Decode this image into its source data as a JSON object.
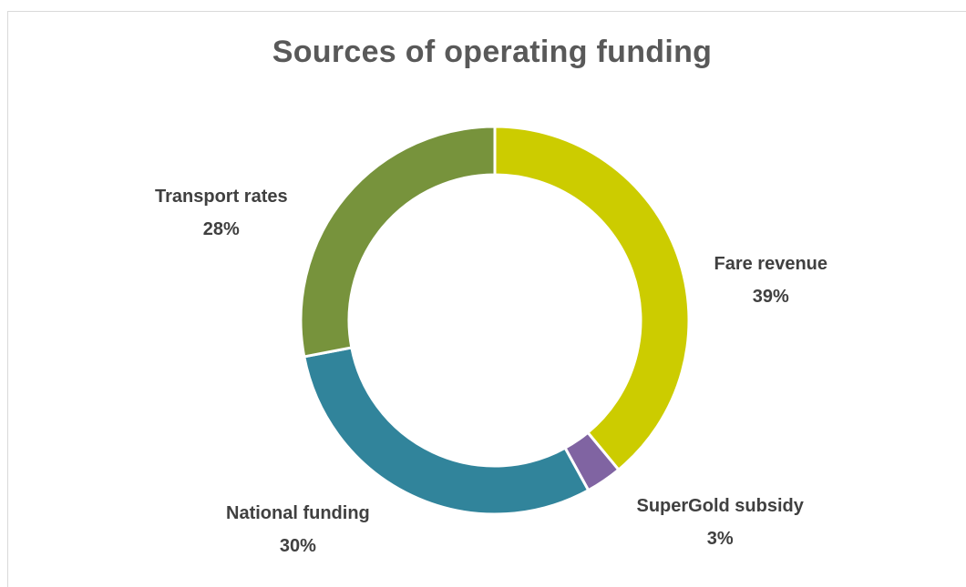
{
  "chart_data": {
    "type": "pie",
    "variant": "donut",
    "title": "Sources of operating funding",
    "slices": [
      {
        "label": "Fare revenue",
        "value": 39,
        "display": "39%",
        "color": "#cccc00"
      },
      {
        "label": "SuperGold subsidy",
        "value": 3,
        "display": "3%",
        "color": "#8064a2"
      },
      {
        "label": "National funding",
        "value": 30,
        "display": "30%",
        "color": "#31849b"
      },
      {
        "label": "Transport rates",
        "value": 28,
        "display": "28%",
        "color": "#77933c"
      }
    ],
    "legend": "none",
    "data_labels": "outside"
  }
}
